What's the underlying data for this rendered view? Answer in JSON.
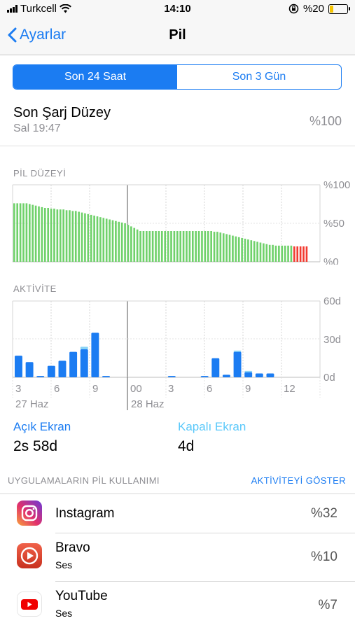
{
  "status_bar": {
    "carrier": "Turkcell",
    "time": "14:10",
    "battery_pct": "%20",
    "battery_level": 0.2
  },
  "nav": {
    "back_label": "Ayarlar",
    "title": "Pil"
  },
  "segments": [
    {
      "label": "Son 24 Saat",
      "active": true
    },
    {
      "label": "Son 3 Gün",
      "active": false
    }
  ],
  "last_charge": {
    "title": "Son Şarj Düzey",
    "time": "Sal 19:47",
    "value": "%100"
  },
  "battery_level_section": {
    "label": "PİL DÜZEYİ",
    "y_ticks": [
      "%100",
      "%50",
      "%0"
    ]
  },
  "activity_section": {
    "label": "AKTİVİTE",
    "y_ticks": [
      "60d",
      "30d",
      "0d"
    ]
  },
  "x_axis": {
    "hours": [
      "3",
      "6",
      "9",
      "00",
      "3",
      "6",
      "9",
      "12"
    ],
    "dates": [
      "27 Haz",
      "28 Haz"
    ]
  },
  "chart_data": [
    {
      "type": "bar",
      "title": "PİL DÜZEYİ",
      "ylim": [
        0,
        100
      ],
      "y_unit": "%",
      "colors": {
        "normal": "#6fd16a",
        "low": "#f23b30"
      },
      "values": [
        76,
        76,
        76,
        76,
        76,
        75,
        74,
        73,
        72,
        71,
        70,
        70,
        69,
        69,
        68,
        68,
        68,
        67,
        67,
        66,
        66,
        65,
        64,
        63,
        62,
        61,
        60,
        59,
        58,
        57,
        56,
        55,
        54,
        53,
        52,
        51,
        50,
        48,
        46,
        44,
        42,
        40,
        40,
        40,
        40,
        40,
        40,
        40,
        40,
        40,
        40,
        40,
        40,
        40,
        40,
        40,
        40,
        40,
        40,
        40,
        40,
        40,
        40,
        40,
        40,
        39,
        39,
        38,
        37,
        36,
        35,
        34,
        33,
        32,
        31,
        30,
        29,
        28,
        27,
        26,
        25,
        24,
        23,
        22,
        22,
        21,
        21,
        21,
        21,
        21,
        21,
        20,
        20,
        20,
        20,
        20
      ],
      "low_from_index": 91
    },
    {
      "type": "bar",
      "title": "AKTİVİTE",
      "ylim": [
        0,
        60
      ],
      "y_unit": "d",
      "series": [
        {
          "name": "Açık Ekran",
          "color": "#1b7cf2",
          "values": [
            17,
            12,
            1,
            9,
            13,
            20,
            22,
            35,
            1,
            0,
            0,
            0,
            0,
            0,
            1,
            0,
            0,
            1,
            15,
            2,
            20,
            4,
            3,
            3,
            0,
            0,
            0
          ]
        },
        {
          "name": "Kapalı Ekran",
          "color": "#8ad3f5",
          "values": [
            0,
            0,
            0,
            0,
            0,
            0,
            2,
            0,
            0,
            0,
            0,
            0,
            0,
            0,
            0,
            0,
            0,
            0,
            0,
            0,
            1,
            1,
            0,
            0,
            0,
            0,
            0
          ]
        }
      ]
    }
  ],
  "metrics": [
    {
      "label": "Açık Ekran",
      "value": "2s 58d",
      "color": "#1b7cf2"
    },
    {
      "label": "Kapalı Ekran",
      "value": "4d",
      "color": "#5ac8fa"
    }
  ],
  "apps_section": {
    "label": "UYGULAMALARIN PİL KULLANIMI",
    "action": "AKTİVİTEYİ GÖSTER"
  },
  "apps": [
    {
      "name": "Instagram",
      "sub": "",
      "pct": "%32",
      "icon": "instagram-icon"
    },
    {
      "name": "Bravo",
      "sub": "Ses",
      "pct": "%10",
      "icon": "bravo-icon"
    },
    {
      "name": "YouTube",
      "sub": "Ses",
      "pct": "%7",
      "icon": "youtube-icon"
    }
  ]
}
